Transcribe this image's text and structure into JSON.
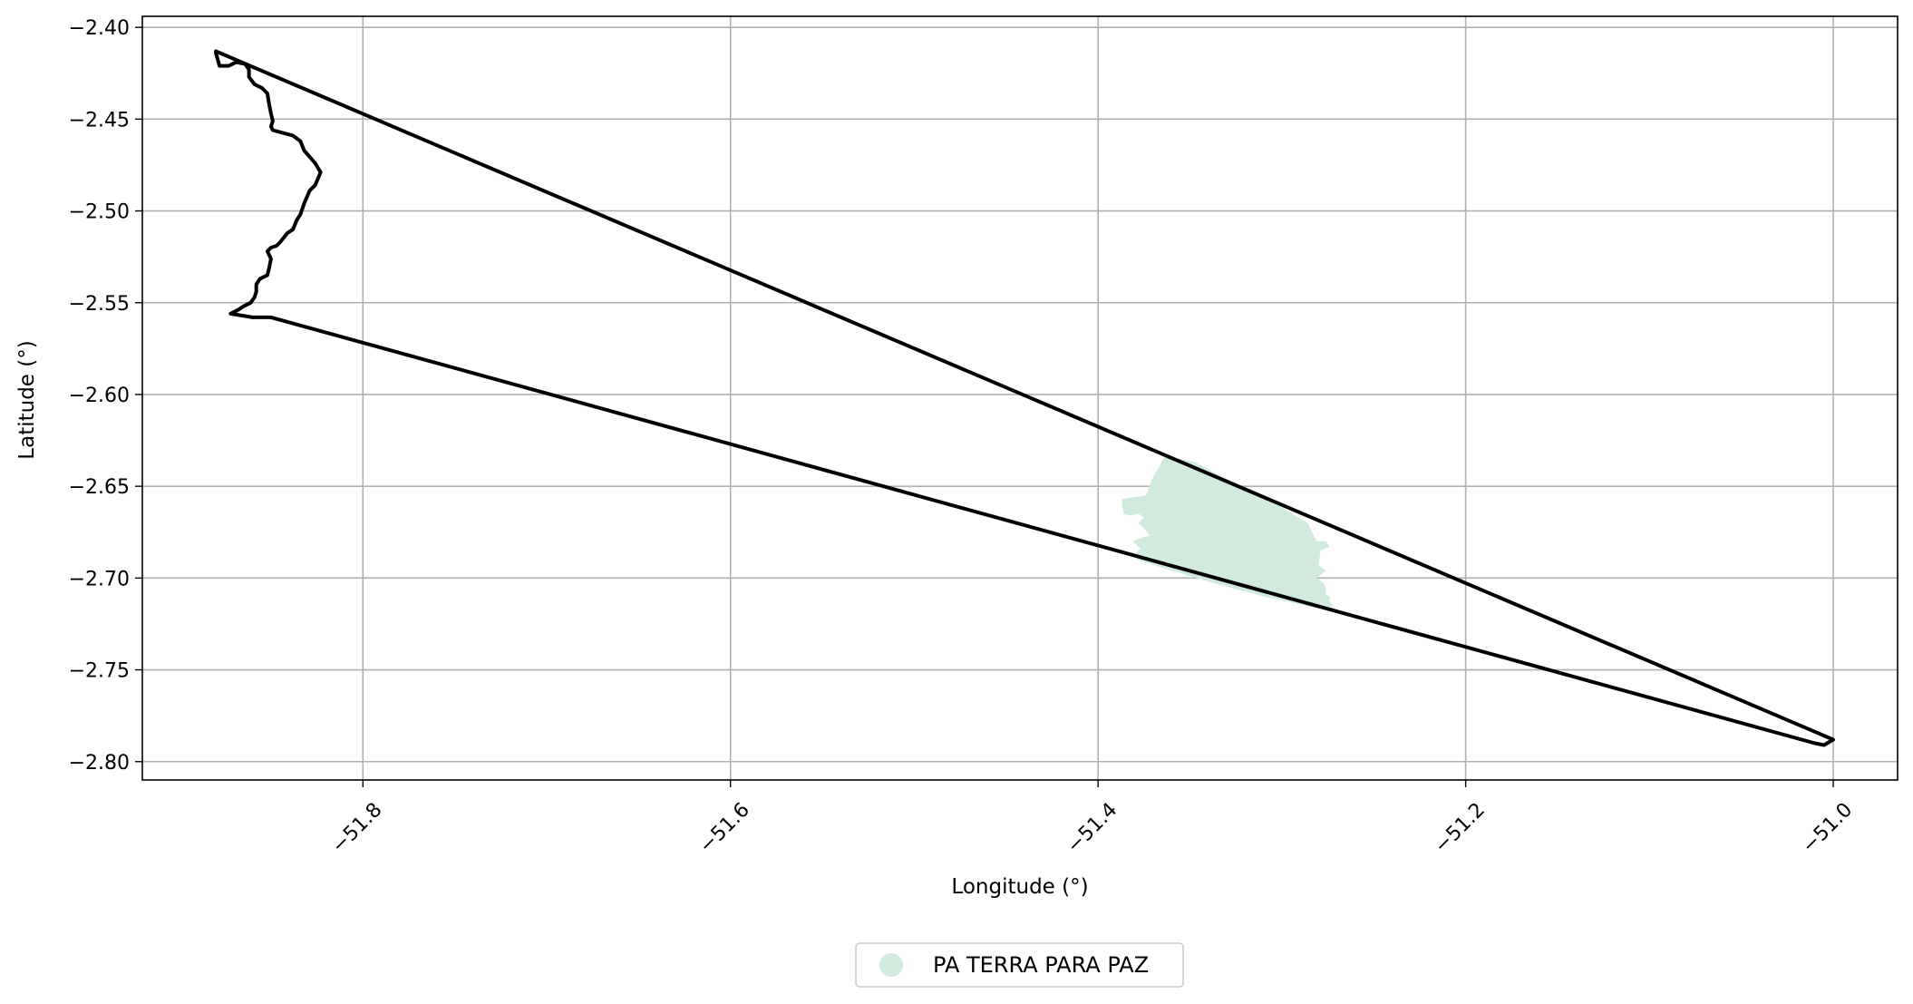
{
  "map": {
    "x_axis": {
      "label": "Longitude (°)",
      "range": [
        -51.92,
        -50.965
      ],
      "ticks": [
        -51.8,
        -51.6,
        -51.4,
        -51.2,
        -51.0
      ],
      "tick_labels": [
        "−51.8",
        "−51.6",
        "−51.4",
        "−51.2",
        "−51.0"
      ],
      "tick_rotation_deg": 45
    },
    "y_axis": {
      "label": "Latitude (°)",
      "range": [
        -2.81,
        -2.394
      ],
      "ticks": [
        -2.4,
        -2.45,
        -2.5,
        -2.55,
        -2.6,
        -2.65,
        -2.7,
        -2.75,
        -2.8
      ],
      "tick_labels": [
        "−2.40",
        "−2.45",
        "−2.50",
        "−2.55",
        "−2.60",
        "−2.65",
        "−2.70",
        "−2.75",
        "−2.80"
      ]
    },
    "grid": true,
    "boundary": {
      "stroke_color": "#000000",
      "coords": [
        [
          -51.88,
          -2.414
        ],
        [
          -51.878,
          -2.421
        ],
        [
          -51.873,
          -2.421
        ],
        [
          -51.869,
          -2.419
        ],
        [
          -51.864,
          -2.42
        ],
        [
          -51.862,
          -2.423
        ],
        [
          -51.862,
          -2.427
        ],
        [
          -51.859,
          -2.431
        ],
        [
          -51.855,
          -2.433
        ],
        [
          -51.852,
          -2.436
        ],
        [
          -51.851,
          -2.442
        ],
        [
          -51.85,
          -2.447
        ],
        [
          -51.849,
          -2.451
        ],
        [
          -51.85,
          -2.454
        ],
        [
          -51.849,
          -2.456
        ],
        [
          -51.838,
          -2.459
        ],
        [
          -51.834,
          -2.462
        ],
        [
          -51.832,
          -2.467
        ],
        [
          -51.826,
          -2.474
        ],
        [
          -51.823,
          -2.479
        ],
        [
          -51.826,
          -2.486
        ],
        [
          -51.829,
          -2.489
        ],
        [
          -51.832,
          -2.496
        ],
        [
          -51.834,
          -2.502
        ],
        [
          -51.836,
          -2.505
        ],
        [
          -51.838,
          -2.51
        ],
        [
          -51.841,
          -2.512
        ],
        [
          -51.845,
          -2.517
        ],
        [
          -51.847,
          -2.519
        ],
        [
          -51.85,
          -2.52
        ],
        [
          -51.852,
          -2.522
        ],
        [
          -51.85,
          -2.526
        ],
        [
          -51.851,
          -2.531
        ],
        [
          -51.852,
          -2.535
        ],
        [
          -51.856,
          -2.537
        ],
        [
          -51.858,
          -2.54
        ],
        [
          -51.858,
          -2.544
        ],
        [
          -51.859,
          -2.547
        ],
        [
          -51.861,
          -2.55
        ],
        [
          -51.865,
          -2.552
        ],
        [
          -51.868,
          -2.554
        ],
        [
          -51.872,
          -2.556
        ],
        [
          -51.86,
          -2.558
        ],
        [
          -51.85,
          -2.558
        ],
        [
          -51.01,
          -2.79
        ],
        [
          -51.005,
          -2.791
        ],
        [
          -51.0,
          -2.788
        ],
        [
          -51.007,
          -2.785
        ],
        [
          -51.88,
          -2.413
        ]
      ]
    },
    "layers": [
      {
        "name": "PA TERRA PARA PAZ",
        "fill_color": "#d0ebdd",
        "coords": [
          [
            -51.364,
            -2.634
          ],
          [
            -51.356,
            -2.635
          ],
          [
            -51.347,
            -2.637
          ],
          [
            -51.334,
            -2.644
          ],
          [
            -51.318,
            -2.652
          ],
          [
            -51.307,
            -2.657
          ],
          [
            -51.296,
            -2.664
          ],
          [
            -51.286,
            -2.67
          ],
          [
            -51.283,
            -2.676
          ],
          [
            -51.281,
            -2.68
          ],
          [
            -51.276,
            -2.68
          ],
          [
            -51.274,
            -2.683
          ],
          [
            -51.279,
            -2.685
          ],
          [
            -51.28,
            -2.693
          ],
          [
            -51.276,
            -2.696
          ],
          [
            -51.281,
            -2.7
          ],
          [
            -51.277,
            -2.703
          ],
          [
            -51.276,
            -2.706
          ],
          [
            -51.276,
            -2.709
          ],
          [
            -51.274,
            -2.71
          ],
          [
            -51.274,
            -2.713
          ],
          [
            -51.272,
            -2.715
          ],
          [
            -51.278,
            -2.717
          ],
          [
            -51.31,
            -2.71
          ],
          [
            -51.34,
            -2.702
          ],
          [
            -51.379,
            -2.69
          ],
          [
            -51.379,
            -2.686
          ],
          [
            -51.377,
            -2.684
          ],
          [
            -51.381,
            -2.68
          ],
          [
            -51.376,
            -2.678
          ],
          [
            -51.372,
            -2.677
          ],
          [
            -51.374,
            -2.674
          ],
          [
            -51.378,
            -2.67
          ],
          [
            -51.375,
            -2.667
          ],
          [
            -51.378,
            -2.665
          ],
          [
            -51.383,
            -2.666
          ],
          [
            -51.386,
            -2.665
          ],
          [
            -51.387,
            -2.66
          ],
          [
            -51.387,
            -2.657
          ],
          [
            -51.374,
            -2.655
          ],
          [
            -51.372,
            -2.65
          ],
          [
            -51.371,
            -2.647
          ],
          [
            -51.369,
            -2.643
          ],
          [
            -51.367,
            -2.64
          ],
          [
            -51.366,
            -2.638
          ]
        ]
      }
    ],
    "legend": {
      "placement": "bottom-center",
      "items": [
        {
          "label": "PA TERRA PARA PAZ",
          "color": "#d0ebdd"
        }
      ]
    }
  }
}
